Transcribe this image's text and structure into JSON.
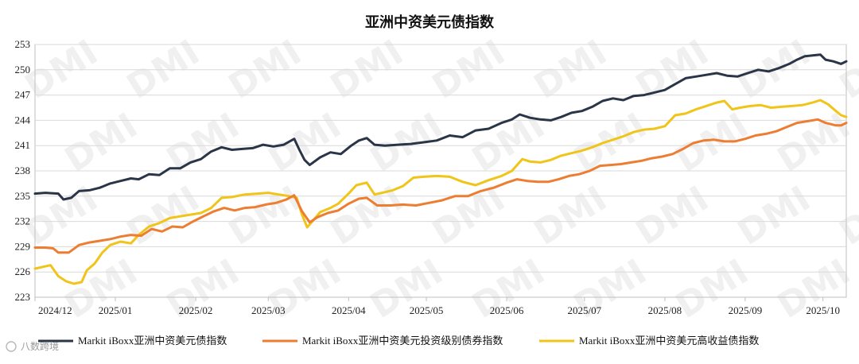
{
  "chart_data": {
    "type": "line",
    "title": "亚洲中资美元债指数",
    "xlabel": "",
    "ylabel": "",
    "ylim": [
      223,
      253
    ],
    "yticks": [
      223,
      226,
      229,
      232,
      235,
      238,
      241,
      244,
      247,
      250,
      253
    ],
    "xlim": [
      "2024-12-01",
      "2025-10-10"
    ],
    "xticks": [
      {
        "date": "2024-12-01",
        "label": "2024/12"
      },
      {
        "date": "2025-01-01",
        "label": "2025/01"
      },
      {
        "date": "2025-02-01",
        "label": "2025/02"
      },
      {
        "date": "2025-03-01",
        "label": "2025/03"
      },
      {
        "date": "2025-04-01",
        "label": "2025/04"
      },
      {
        "date": "2025-05-01",
        "label": "2025/05"
      },
      {
        "date": "2025-06-01",
        "label": "2025/06"
      },
      {
        "date": "2025-07-01",
        "label": "2025/07"
      },
      {
        "date": "2025-08-01",
        "label": "2025/08"
      },
      {
        "date": "2025-09-01",
        "label": "2025/09"
      },
      {
        "date": "2025-10-01",
        "label": "2025/10"
      }
    ],
    "grid": "horizontal",
    "legend_position": "bottom",
    "series": [
      {
        "name": "Markit iBoxx亚洲中资美元债指数",
        "color": "#2b3548",
        "points": [
          [
            "2024-12-01",
            235.3
          ],
          [
            "2024-12-05",
            235.4
          ],
          [
            "2024-12-10",
            235.3
          ],
          [
            "2024-12-12",
            234.6
          ],
          [
            "2024-12-15",
            234.8
          ],
          [
            "2024-12-18",
            235.6
          ],
          [
            "2024-12-22",
            235.7
          ],
          [
            "2024-12-26",
            236.0
          ],
          [
            "2024-12-30",
            236.5
          ],
          [
            "2025-01-03",
            236.8
          ],
          [
            "2025-01-07",
            237.1
          ],
          [
            "2025-01-10",
            237.0
          ],
          [
            "2025-01-14",
            237.6
          ],
          [
            "2025-01-18",
            237.5
          ],
          [
            "2025-01-22",
            238.3
          ],
          [
            "2025-01-26",
            238.3
          ],
          [
            "2025-01-30",
            239.0
          ],
          [
            "2025-02-03",
            239.4
          ],
          [
            "2025-02-07",
            240.3
          ],
          [
            "2025-02-11",
            240.8
          ],
          [
            "2025-02-15",
            240.5
          ],
          [
            "2025-02-19",
            240.6
          ],
          [
            "2025-02-23",
            240.7
          ],
          [
            "2025-02-27",
            241.1
          ],
          [
            "2025-03-03",
            240.9
          ],
          [
            "2025-03-07",
            241.1
          ],
          [
            "2025-03-11",
            241.8
          ],
          [
            "2025-03-13",
            240.5
          ],
          [
            "2025-03-15",
            239.3
          ],
          [
            "2025-03-17",
            238.7
          ],
          [
            "2025-03-21",
            239.6
          ],
          [
            "2025-03-25",
            240.2
          ],
          [
            "2025-03-29",
            240.0
          ],
          [
            "2025-04-02",
            241.0
          ],
          [
            "2025-04-05",
            241.6
          ],
          [
            "2025-04-08",
            241.9
          ],
          [
            "2025-04-11",
            241.1
          ],
          [
            "2025-04-15",
            241.0
          ],
          [
            "2025-04-20",
            241.1
          ],
          [
            "2025-04-25",
            241.2
          ],
          [
            "2025-04-30",
            241.4
          ],
          [
            "2025-05-05",
            241.6
          ],
          [
            "2025-05-10",
            242.2
          ],
          [
            "2025-05-15",
            242.0
          ],
          [
            "2025-05-20",
            242.8
          ],
          [
            "2025-05-25",
            243.0
          ],
          [
            "2025-05-30",
            243.7
          ],
          [
            "2025-06-03",
            244.1
          ],
          [
            "2025-06-06",
            244.7
          ],
          [
            "2025-06-10",
            244.3
          ],
          [
            "2025-06-14",
            244.1
          ],
          [
            "2025-06-18",
            244.0
          ],
          [
            "2025-06-22",
            244.4
          ],
          [
            "2025-06-26",
            244.9
          ],
          [
            "2025-06-30",
            245.1
          ],
          [
            "2025-07-04",
            245.6
          ],
          [
            "2025-07-08",
            246.3
          ],
          [
            "2025-07-12",
            246.6
          ],
          [
            "2025-07-16",
            246.4
          ],
          [
            "2025-07-20",
            246.9
          ],
          [
            "2025-07-24",
            247.0
          ],
          [
            "2025-07-28",
            247.3
          ],
          [
            "2025-08-01",
            247.6
          ],
          [
            "2025-08-05",
            248.3
          ],
          [
            "2025-08-09",
            249.0
          ],
          [
            "2025-08-13",
            249.2
          ],
          [
            "2025-08-17",
            249.4
          ],
          [
            "2025-08-21",
            249.6
          ],
          [
            "2025-08-25",
            249.3
          ],
          [
            "2025-08-29",
            249.2
          ],
          [
            "2025-09-02",
            249.6
          ],
          [
            "2025-09-06",
            250.0
          ],
          [
            "2025-09-10",
            249.8
          ],
          [
            "2025-09-14",
            250.2
          ],
          [
            "2025-09-18",
            250.7
          ],
          [
            "2025-09-21",
            251.2
          ],
          [
            "2025-09-24",
            251.6
          ],
          [
            "2025-09-27",
            251.7
          ],
          [
            "2025-09-30",
            251.8
          ],
          [
            "2025-10-02",
            251.2
          ],
          [
            "2025-10-05",
            251.0
          ],
          [
            "2025-10-08",
            250.7
          ],
          [
            "2025-10-10",
            251.0
          ]
        ]
      },
      {
        "name": "Markit iBoxx亚洲中资美元投资级别债券指数",
        "color": "#ed7d31",
        "points": [
          [
            "2024-12-01",
            228.9
          ],
          [
            "2024-12-05",
            228.9
          ],
          [
            "2024-12-08",
            228.8
          ],
          [
            "2024-12-10",
            228.3
          ],
          [
            "2024-12-14",
            228.3
          ],
          [
            "2024-12-18",
            229.2
          ],
          [
            "2024-12-22",
            229.5
          ],
          [
            "2024-12-26",
            229.7
          ],
          [
            "2024-12-30",
            229.9
          ],
          [
            "2025-01-03",
            230.2
          ],
          [
            "2025-01-07",
            230.4
          ],
          [
            "2025-01-11",
            230.3
          ],
          [
            "2025-01-15",
            231.1
          ],
          [
            "2025-01-19",
            230.8
          ],
          [
            "2025-01-23",
            231.4
          ],
          [
            "2025-01-27",
            231.3
          ],
          [
            "2025-01-31",
            232.0
          ],
          [
            "2025-02-04",
            232.6
          ],
          [
            "2025-02-08",
            233.2
          ],
          [
            "2025-02-12",
            233.6
          ],
          [
            "2025-02-16",
            233.3
          ],
          [
            "2025-02-20",
            233.6
          ],
          [
            "2025-02-24",
            233.7
          ],
          [
            "2025-02-28",
            234.0
          ],
          [
            "2025-03-04",
            234.2
          ],
          [
            "2025-03-08",
            234.6
          ],
          [
            "2025-03-11",
            235.1
          ],
          [
            "2025-03-14",
            233.2
          ],
          [
            "2025-03-17",
            231.9
          ],
          [
            "2025-03-20",
            232.5
          ],
          [
            "2025-03-24",
            233.0
          ],
          [
            "2025-03-28",
            233.3
          ],
          [
            "2025-04-01",
            234.1
          ],
          [
            "2025-04-05",
            234.7
          ],
          [
            "2025-04-08",
            234.8
          ],
          [
            "2025-04-12",
            233.9
          ],
          [
            "2025-04-17",
            233.9
          ],
          [
            "2025-04-22",
            234.0
          ],
          [
            "2025-04-27",
            233.9
          ],
          [
            "2025-05-02",
            234.2
          ],
          [
            "2025-05-07",
            234.5
          ],
          [
            "2025-05-12",
            235.0
          ],
          [
            "2025-05-17",
            235.0
          ],
          [
            "2025-05-22",
            235.6
          ],
          [
            "2025-05-27",
            236.0
          ],
          [
            "2025-06-01",
            236.6
          ],
          [
            "2025-06-05",
            237.0
          ],
          [
            "2025-06-09",
            236.8
          ],
          [
            "2025-06-13",
            236.7
          ],
          [
            "2025-06-17",
            236.7
          ],
          [
            "2025-06-21",
            237.0
          ],
          [
            "2025-06-25",
            237.4
          ],
          [
            "2025-06-29",
            237.6
          ],
          [
            "2025-07-03",
            238.0
          ],
          [
            "2025-07-07",
            238.6
          ],
          [
            "2025-07-11",
            238.7
          ],
          [
            "2025-07-15",
            238.8
          ],
          [
            "2025-07-19",
            239.0
          ],
          [
            "2025-07-23",
            239.2
          ],
          [
            "2025-07-27",
            239.5
          ],
          [
            "2025-07-31",
            239.7
          ],
          [
            "2025-08-04",
            240.0
          ],
          [
            "2025-08-08",
            240.6
          ],
          [
            "2025-08-12",
            241.3
          ],
          [
            "2025-08-16",
            241.6
          ],
          [
            "2025-08-20",
            241.7
          ],
          [
            "2025-08-24",
            241.5
          ],
          [
            "2025-08-28",
            241.5
          ],
          [
            "2025-09-01",
            241.8
          ],
          [
            "2025-09-05",
            242.2
          ],
          [
            "2025-09-09",
            242.4
          ],
          [
            "2025-09-13",
            242.7
          ],
          [
            "2025-09-17",
            243.2
          ],
          [
            "2025-09-21",
            243.7
          ],
          [
            "2025-09-25",
            243.9
          ],
          [
            "2025-09-29",
            244.1
          ],
          [
            "2025-10-02",
            243.7
          ],
          [
            "2025-10-06",
            243.4
          ],
          [
            "2025-10-08",
            243.4
          ],
          [
            "2025-10-10",
            243.7
          ]
        ]
      },
      {
        "name": "Markit iBoxx亚洲中资美元高收益债指数",
        "color": "#f0c419",
        "points": [
          [
            "2024-12-01",
            226.4
          ],
          [
            "2024-12-04",
            226.6
          ],
          [
            "2024-12-07",
            226.8
          ],
          [
            "2024-12-10",
            225.5
          ],
          [
            "2024-12-13",
            224.9
          ],
          [
            "2024-12-16",
            224.6
          ],
          [
            "2024-12-19",
            224.8
          ],
          [
            "2024-12-21",
            226.2
          ],
          [
            "2024-12-24",
            227.0
          ],
          [
            "2024-12-27",
            228.3
          ],
          [
            "2024-12-30",
            229.2
          ],
          [
            "2025-01-03",
            229.6
          ],
          [
            "2025-01-07",
            229.4
          ],
          [
            "2025-01-10",
            230.4
          ],
          [
            "2025-01-14",
            231.4
          ],
          [
            "2025-01-18",
            231.8
          ],
          [
            "2025-01-22",
            232.4
          ],
          [
            "2025-01-26",
            232.6
          ],
          [
            "2025-01-30",
            232.8
          ],
          [
            "2025-02-03",
            233.0
          ],
          [
            "2025-02-07",
            233.6
          ],
          [
            "2025-02-11",
            234.8
          ],
          [
            "2025-02-15",
            234.9
          ],
          [
            "2025-02-20",
            235.2
          ],
          [
            "2025-02-25",
            235.3
          ],
          [
            "2025-03-01",
            235.4
          ],
          [
            "2025-03-05",
            235.2
          ],
          [
            "2025-03-09",
            235.0
          ],
          [
            "2025-03-12",
            234.8
          ],
          [
            "2025-03-14",
            232.8
          ],
          [
            "2025-03-16",
            231.3
          ],
          [
            "2025-03-18",
            232.0
          ],
          [
            "2025-03-21",
            233.1
          ],
          [
            "2025-03-25",
            233.6
          ],
          [
            "2025-03-28",
            234.1
          ],
          [
            "2025-04-01",
            235.3
          ],
          [
            "2025-04-04",
            236.3
          ],
          [
            "2025-04-08",
            236.6
          ],
          [
            "2025-04-11",
            235.2
          ],
          [
            "2025-04-14",
            235.4
          ],
          [
            "2025-04-18",
            235.7
          ],
          [
            "2025-04-22",
            236.2
          ],
          [
            "2025-04-26",
            237.2
          ],
          [
            "2025-04-30",
            237.3
          ],
          [
            "2025-05-05",
            237.4
          ],
          [
            "2025-05-10",
            237.3
          ],
          [
            "2025-05-15",
            236.7
          ],
          [
            "2025-05-20",
            236.3
          ],
          [
            "2025-05-25",
            236.9
          ],
          [
            "2025-05-30",
            237.4
          ],
          [
            "2025-06-03",
            238.0
          ],
          [
            "2025-06-07",
            239.4
          ],
          [
            "2025-06-10",
            239.1
          ],
          [
            "2025-06-14",
            239.0
          ],
          [
            "2025-06-18",
            239.3
          ],
          [
            "2025-06-22",
            239.8
          ],
          [
            "2025-06-26",
            240.1
          ],
          [
            "2025-06-30",
            240.4
          ],
          [
            "2025-07-04",
            240.8
          ],
          [
            "2025-07-08",
            241.3
          ],
          [
            "2025-07-12",
            241.7
          ],
          [
            "2025-07-16",
            242.1
          ],
          [
            "2025-07-20",
            242.6
          ],
          [
            "2025-07-24",
            242.9
          ],
          [
            "2025-07-28",
            243.0
          ],
          [
            "2025-08-01",
            243.3
          ],
          [
            "2025-08-05",
            244.6
          ],
          [
            "2025-08-09",
            244.8
          ],
          [
            "2025-08-13",
            245.3
          ],
          [
            "2025-08-17",
            245.7
          ],
          [
            "2025-08-21",
            246.1
          ],
          [
            "2025-08-24",
            246.3
          ],
          [
            "2025-08-27",
            245.3
          ],
          [
            "2025-08-30",
            245.5
          ],
          [
            "2025-09-03",
            245.7
          ],
          [
            "2025-09-07",
            245.8
          ],
          [
            "2025-09-11",
            245.5
          ],
          [
            "2025-09-15",
            245.6
          ],
          [
            "2025-09-19",
            245.7
          ],
          [
            "2025-09-23",
            245.8
          ],
          [
            "2025-09-27",
            246.1
          ],
          [
            "2025-09-30",
            246.4
          ],
          [
            "2025-10-03",
            245.9
          ],
          [
            "2025-10-06",
            245.1
          ],
          [
            "2025-10-08",
            244.6
          ],
          [
            "2025-10-10",
            244.4
          ]
        ]
      }
    ]
  },
  "watermark": {
    "text": "DMI"
  },
  "source_mark": {
    "text": "八数跨境"
  }
}
